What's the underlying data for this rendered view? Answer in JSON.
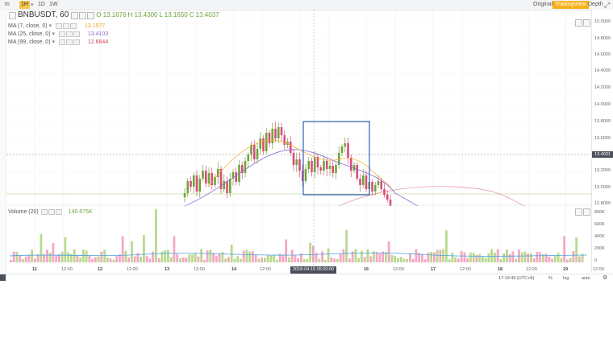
{
  "toolbar": {
    "intervals": [
      {
        "label": "m",
        "active": false
      },
      {
        "label": "1H",
        "active": true
      },
      {
        "label": "1D",
        "active": false
      },
      {
        "label": "1W",
        "active": false
      }
    ],
    "views": [
      {
        "label": "Original",
        "active": false
      },
      {
        "label": "TradingView",
        "active": true
      },
      {
        "label": "Depth",
        "active": false
      }
    ],
    "fullscreen_icon": "expand-arrows-icon"
  },
  "legend": {
    "symbol": "BNBUSDT, 60",
    "ohlc": {
      "o": "O 13.1676",
      "h": "H 13.4300",
      "l": "L 13.1650",
      "c": "C 13.4037"
    },
    "ma": [
      {
        "label": "MA (7, close, 0)",
        "value": "13.1977",
        "color": "#f6a623"
      },
      {
        "label": "MA (25, close, 0)",
        "value": "13.4103",
        "color": "#8c6bd6"
      },
      {
        "label": "MA (99, close, 0)",
        "value": "12.6644",
        "color": "#d6455e"
      }
    ],
    "volume": {
      "label": "Volume (20)",
      "value": "140.675K"
    }
  },
  "price_axis": {
    "labels": [
      "15.0000",
      "14.8000",
      "14.6000",
      "14.4000",
      "14.2000",
      "14.0000",
      "13.8000",
      "13.6000",
      "13.2000",
      "13.0000",
      "12.8000"
    ],
    "current_tag": "13.4031",
    "volume_labels": [
      "800K",
      "600K",
      "400K",
      "200K",
      "0"
    ]
  },
  "time_axis": {
    "labels": [
      "11",
      "12:00",
      "12",
      "12:00",
      "13",
      "12:00",
      "14",
      "12:00",
      "15",
      "12:00",
      "16",
      "12:00",
      "17",
      "12:00",
      "18",
      "12:00",
      "19",
      "12:00"
    ],
    "crosshair_tag": "2018-04-15 05:00:00"
  },
  "status_bar": {
    "clock": "17:19:49 (UTC+8)",
    "percent": "%",
    "log": "log",
    "auto": "auto",
    "settings_icon": "gear-icon"
  },
  "colors": {
    "up": "#6ea43a",
    "down": "#d94c7a",
    "ma7": "#f6a623",
    "ma25": "#8c6bd6",
    "ma99": "#d6455e",
    "selection_box": "#2f5fb3",
    "active_tab": "#f7b21a"
  }
}
